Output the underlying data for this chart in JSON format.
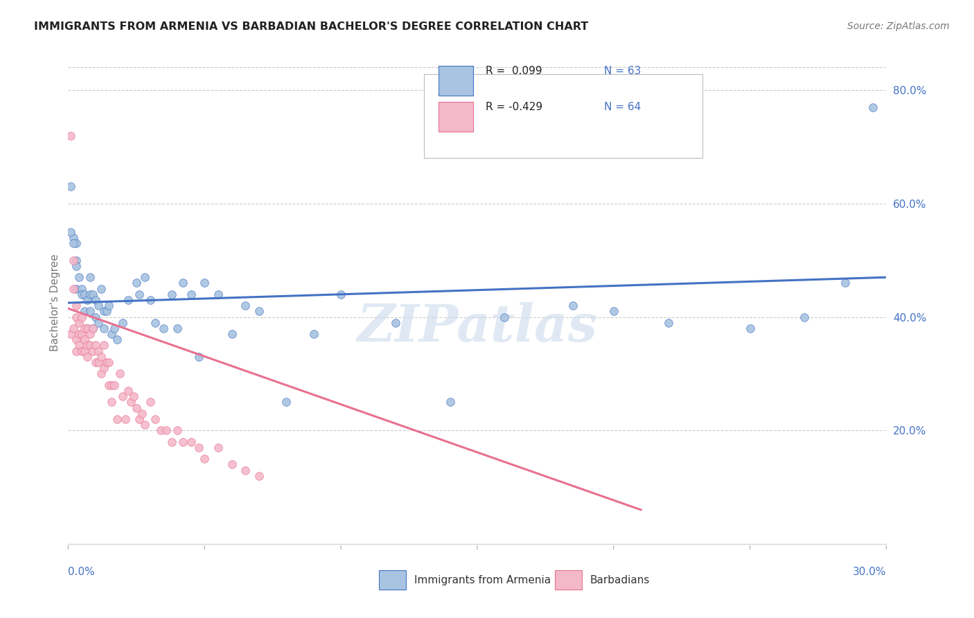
{
  "title": "IMMIGRANTS FROM ARMENIA VS BARBADIAN BACHELOR'S DEGREE CORRELATION CHART",
  "source": "Source: ZipAtlas.com",
  "ylabel": "Bachelor's Degree",
  "legend_label1": "Immigrants from Armenia",
  "legend_label2": "Barbadians",
  "legend_r1": "R =  0.099",
  "legend_n1": "N = 63",
  "legend_r2": "R = -0.429",
  "legend_n2": "N = 64",
  "watermark": "ZIPatlas",
  "color_blue": "#a8c4e0",
  "color_pink": "#f4b8cb",
  "color_blue_dark": "#4472c4",
  "color_pink_dark": "#e87090",
  "color_text": "#4472c4",
  "xmin": 0.0,
  "xmax": 0.3,
  "ymin": 0.0,
  "ymax": 0.85,
  "blue_scatter_x": [
    0.001,
    0.002,
    0.001,
    0.003,
    0.002,
    0.003,
    0.003,
    0.004,
    0.003,
    0.005,
    0.005,
    0.006,
    0.006,
    0.007,
    0.007,
    0.008,
    0.008,
    0.008,
    0.009,
    0.009,
    0.01,
    0.01,
    0.011,
    0.011,
    0.012,
    0.013,
    0.013,
    0.014,
    0.015,
    0.016,
    0.017,
    0.018,
    0.02,
    0.022,
    0.025,
    0.026,
    0.028,
    0.03,
    0.032,
    0.035,
    0.038,
    0.04,
    0.042,
    0.045,
    0.048,
    0.05,
    0.055,
    0.06,
    0.065,
    0.07,
    0.08,
    0.09,
    0.1,
    0.12,
    0.14,
    0.16,
    0.185,
    0.2,
    0.22,
    0.25,
    0.27,
    0.285,
    0.295
  ],
  "blue_scatter_y": [
    0.63,
    0.54,
    0.55,
    0.53,
    0.53,
    0.5,
    0.49,
    0.47,
    0.45,
    0.45,
    0.44,
    0.44,
    0.41,
    0.43,
    0.38,
    0.47,
    0.44,
    0.41,
    0.44,
    0.38,
    0.43,
    0.4,
    0.42,
    0.39,
    0.45,
    0.41,
    0.38,
    0.41,
    0.42,
    0.37,
    0.38,
    0.36,
    0.39,
    0.43,
    0.46,
    0.44,
    0.47,
    0.43,
    0.39,
    0.38,
    0.44,
    0.38,
    0.46,
    0.44,
    0.33,
    0.46,
    0.44,
    0.37,
    0.42,
    0.41,
    0.25,
    0.37,
    0.44,
    0.39,
    0.25,
    0.4,
    0.42,
    0.41,
    0.39,
    0.38,
    0.4,
    0.46,
    0.77
  ],
  "pink_scatter_x": [
    0.001,
    0.001,
    0.002,
    0.002,
    0.002,
    0.003,
    0.003,
    0.003,
    0.003,
    0.004,
    0.004,
    0.004,
    0.005,
    0.005,
    0.005,
    0.006,
    0.006,
    0.006,
    0.007,
    0.007,
    0.007,
    0.008,
    0.008,
    0.009,
    0.009,
    0.01,
    0.01,
    0.011,
    0.011,
    0.012,
    0.012,
    0.013,
    0.013,
    0.014,
    0.015,
    0.015,
    0.016,
    0.016,
    0.017,
    0.018,
    0.019,
    0.02,
    0.021,
    0.022,
    0.023,
    0.024,
    0.025,
    0.026,
    0.027,
    0.028,
    0.03,
    0.032,
    0.034,
    0.036,
    0.038,
    0.04,
    0.042,
    0.045,
    0.048,
    0.05,
    0.055,
    0.06,
    0.065,
    0.07
  ],
  "pink_scatter_y": [
    0.72,
    0.37,
    0.5,
    0.45,
    0.38,
    0.42,
    0.4,
    0.36,
    0.34,
    0.39,
    0.37,
    0.35,
    0.4,
    0.37,
    0.34,
    0.38,
    0.36,
    0.34,
    0.38,
    0.35,
    0.33,
    0.37,
    0.35,
    0.38,
    0.34,
    0.35,
    0.32,
    0.34,
    0.32,
    0.33,
    0.3,
    0.35,
    0.31,
    0.32,
    0.32,
    0.28,
    0.25,
    0.28,
    0.28,
    0.22,
    0.3,
    0.26,
    0.22,
    0.27,
    0.25,
    0.26,
    0.24,
    0.22,
    0.23,
    0.21,
    0.25,
    0.22,
    0.2,
    0.2,
    0.18,
    0.2,
    0.18,
    0.18,
    0.17,
    0.15,
    0.17,
    0.14,
    0.13,
    0.12
  ],
  "blue_trend_x": [
    0.0,
    0.3
  ],
  "blue_trend_y": [
    0.425,
    0.47
  ],
  "pink_trend_x": [
    0.0,
    0.21
  ],
  "pink_trend_y": [
    0.415,
    0.06
  ]
}
